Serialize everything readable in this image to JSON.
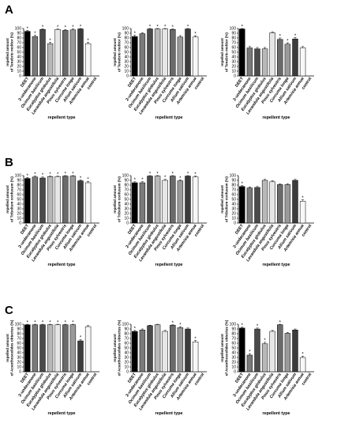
{
  "panel_labels": [
    "A",
    "B",
    "C"
  ],
  "categories": [
    "DEET",
    "2-undecanone",
    "Ocimum basilicum",
    "Eucalyptus globulus",
    "Lavandula angustifolia",
    "Pinus sylvestris",
    "Curcuma longa",
    "Allium sativum",
    "Artemisia annua",
    "control"
  ],
  "category_styles": [
    "plain",
    "plain",
    "italic",
    "italic",
    "italic",
    "italic",
    "italic",
    "italic",
    "italic",
    "plain"
  ],
  "y_ticks": [
    "0",
    "10",
    "20",
    "30",
    "40",
    "50",
    "60",
    "70",
    "80",
    "90",
    "100"
  ],
  "x_axis_label": "repellent type",
  "y_axis_labels": {
    "A": [
      "repelled amount",
      "of Tenebrio molitor (%)"
    ],
    "B": [
      "repelled amount",
      "of Tribolium confusum (%)"
    ],
    "C": [
      "repelled amount",
      "of Acanthoscelides obtectus (%)"
    ]
  },
  "bar_colors": [
    "#000000",
    "#7a7a7a",
    "#4a4a4a",
    "#b8b8b8",
    "#e6e6e6",
    "#6a6a6a",
    "#9a9a9a",
    "#3c3c3c",
    "#f7f7f7",
    "#8a8a8a"
  ],
  "significance_marker": "*",
  "chart_data": [
    {
      "type": "bar",
      "row": "A",
      "col": 1,
      "ylabel": "repelled amount of Tenebrio molitor (%)",
      "xlabel": "repellent type",
      "ylim": [
        0,
        100
      ],
      "categories": [
        "DEET",
        "2-undecanone",
        "Ocimum basilicum",
        "Eucalyptus globulus",
        "Lavandula angustifolia",
        "Pinus sylvestris",
        "Curcuma longa",
        "Allium sativum",
        "Artemisia annua",
        "control"
      ],
      "values": [
        94,
        83,
        98,
        68,
        98,
        96,
        97,
        99,
        68,
        0
      ],
      "errors": [
        2,
        3,
        1,
        3,
        1,
        2,
        2,
        1,
        3,
        0
      ],
      "significant": [
        true,
        true,
        true,
        true,
        true,
        true,
        true,
        true,
        true,
        false
      ]
    },
    {
      "type": "bar",
      "row": "A",
      "col": 2,
      "ylabel": "repelled amount of Tenebrio molitor (%)",
      "xlabel": "repellent type",
      "ylim": [
        0,
        100
      ],
      "categories": [
        "DEET",
        "2-undecanone",
        "Ocimum basilicum",
        "Eucalyptus globulus",
        "Lavandula angustifolia",
        "Pinus sylvestris",
        "Curcuma longa",
        "Allium sativum",
        "Artemisia annua",
        "control"
      ],
      "values": [
        83,
        89,
        99,
        99,
        99,
        98,
        82,
        99,
        82,
        0
      ],
      "errors": [
        3,
        2,
        1,
        1,
        1,
        1,
        3,
        1,
        3,
        0
      ],
      "significant": [
        true,
        false,
        true,
        true,
        true,
        true,
        false,
        true,
        true,
        false
      ]
    },
    {
      "type": "bar",
      "row": "A",
      "col": 3,
      "ylabel": "repelled amount of Tenebrio molitor (%)",
      "xlabel": "repellent type",
      "ylim": [
        0,
        100
      ],
      "categories": [
        "DEET",
        "2-undecanone",
        "Ocimum basilicum",
        "Eucalyptus globulus",
        "Lavandula angustifolia",
        "Pinus sylvestris",
        "Curcuma longa",
        "Allium sativum",
        "Artemisia annua",
        "control"
      ],
      "values": [
        99,
        59,
        57,
        57,
        91,
        77,
        67,
        78,
        59,
        0
      ],
      "errors": [
        1,
        3,
        3,
        3,
        2,
        3,
        3,
        3,
        3,
        0
      ],
      "significant": [
        true,
        false,
        false,
        false,
        false,
        true,
        true,
        true,
        false,
        false
      ]
    },
    {
      "type": "bar",
      "row": "B",
      "col": 1,
      "ylabel": "repelled amount of Tribolium confusum (%)",
      "xlabel": "repellent type",
      "ylim": [
        0,
        100
      ],
      "categories": [
        "DEET",
        "2-undecanone",
        "Ocimum basilicum",
        "Eucalyptus globulus",
        "Lavandula angustifolia",
        "Pinus sylvestris",
        "Curcuma longa",
        "Allium sativum",
        "Artemisia annua",
        "control"
      ],
      "values": [
        94,
        97,
        95,
        98,
        98,
        99,
        99,
        89,
        85,
        0
      ],
      "errors": [
        2,
        2,
        2,
        1,
        1,
        1,
        1,
        2,
        3,
        0
      ],
      "significant": [
        true,
        true,
        true,
        true,
        true,
        true,
        true,
        true,
        true,
        false
      ]
    },
    {
      "type": "bar",
      "row": "B",
      "col": 2,
      "ylabel": "repelled amount of Tribolium confusum (%)",
      "xlabel": "repellent type",
      "ylim": [
        0,
        100
      ],
      "categories": [
        "DEET",
        "2-undecanone",
        "Ocimum basilicum",
        "Eucalyptus globulus",
        "Lavandula angustifolia",
        "Pinus sylvestris",
        "Curcuma longa",
        "Allium sativum",
        "Artemisia annua",
        "control"
      ],
      "values": [
        85,
        85,
        99,
        99,
        90,
        99,
        89,
        99,
        97,
        0
      ],
      "errors": [
        2,
        2,
        1,
        1,
        2,
        1,
        2,
        1,
        2,
        0
      ],
      "significant": [
        true,
        true,
        true,
        true,
        true,
        true,
        true,
        true,
        true,
        false
      ]
    },
    {
      "type": "bar",
      "row": "B",
      "col": 3,
      "ylabel": "repelled amount of Tribolium confusum (%)",
      "xlabel": "repellent type",
      "ylim": [
        0,
        100
      ],
      "categories": [
        "DEET",
        "2-undecanone",
        "Ocimum basilicum",
        "Eucalyptus globulus",
        "Lavandula angustifolia",
        "Pinus sylvestris",
        "Curcuma longa",
        "Allium sativum",
        "Artemisia annua",
        "control"
      ],
      "values": [
        77,
        74,
        75,
        90,
        87,
        81,
        81,
        90,
        46,
        0
      ],
      "errors": [
        2,
        2,
        2,
        2,
        2,
        2,
        2,
        2,
        3,
        0
      ],
      "significant": [
        true,
        false,
        false,
        false,
        false,
        false,
        false,
        false,
        true,
        false
      ]
    },
    {
      "type": "bar",
      "row": "C",
      "col": 1,
      "ylabel": "repelled amount of Acanthoscelides obtectus (%)",
      "xlabel": "repellent type",
      "ylim": [
        0,
        100
      ],
      "categories": [
        "DEET",
        "2-undecanone",
        "Ocimum basilicum",
        "Eucalyptus globulus",
        "Lavandula angustifolia",
        "Pinus sylvestris",
        "Curcuma longa",
        "Allium sativum",
        "Artemisia annua",
        "control"
      ],
      "values": [
        99,
        99,
        99,
        99,
        99,
        99,
        99,
        65,
        95,
        0
      ],
      "errors": [
        1,
        1,
        1,
        1,
        1,
        1,
        1,
        3,
        2,
        0
      ],
      "significant": [
        true,
        true,
        true,
        true,
        true,
        true,
        true,
        true,
        false,
        false
      ]
    },
    {
      "type": "bar",
      "row": "C",
      "col": 2,
      "ylabel": "repelled amount of Acanthoscelides obtectus (%)",
      "xlabel": "repellent type",
      "ylim": [
        0,
        100
      ],
      "categories": [
        "DEET",
        "2-undecanone",
        "Ocimum basilicum",
        "Eucalyptus globulus",
        "Lavandula angustifolia",
        "Pinus sylvestris",
        "Curcuma longa",
        "Allium sativum",
        "Artemisia annua",
        "control"
      ],
      "values": [
        85,
        88,
        97,
        99,
        85,
        98,
        93,
        90,
        63,
        0
      ],
      "errors": [
        2,
        2,
        1,
        1,
        2,
        1,
        2,
        2,
        3,
        0
      ],
      "significant": [
        true,
        false,
        false,
        false,
        false,
        true,
        true,
        false,
        true,
        false
      ]
    },
    {
      "type": "bar",
      "row": "C",
      "col": 3,
      "ylabel": "repelled amount of Acanthoscelides obtectus (%)",
      "xlabel": "repellent type",
      "ylim": [
        0,
        100
      ],
      "categories": [
        "DEET",
        "2-undecanone",
        "Ocimum basilicum",
        "Eucalyptus globulus",
        "Lavandula angustifolia",
        "Pinus sylvestris",
        "Curcuma longa",
        "Allium sativum",
        "Artemisia annua",
        "control"
      ],
      "values": [
        92,
        35,
        90,
        59,
        85,
        99,
        81,
        88,
        30,
        0
      ],
      "errors": [
        2,
        3,
        2,
        3,
        2,
        1,
        2,
        2,
        3,
        0
      ],
      "significant": [
        true,
        true,
        true,
        true,
        false,
        true,
        false,
        false,
        true,
        false
      ]
    }
  ]
}
